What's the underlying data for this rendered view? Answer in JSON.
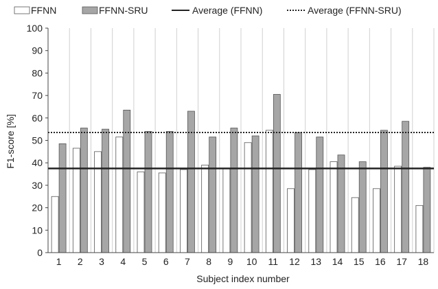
{
  "chart_data": {
    "type": "bar",
    "xlabel": "Subject index number",
    "ylabel": "F1-score [%]",
    "ylim": [
      0,
      100
    ],
    "yticks": [
      0,
      10,
      20,
      30,
      40,
      50,
      60,
      70,
      80,
      90,
      100
    ],
    "grid": "vertical category separators",
    "legend_position": "top",
    "categories": [
      "1",
      "2",
      "3",
      "4",
      "5",
      "6",
      "7",
      "8",
      "9",
      "10",
      "11",
      "12",
      "13",
      "14",
      "15",
      "16",
      "17",
      "18"
    ],
    "series": [
      {
        "name": "FFNN",
        "color": "#ffffff",
        "values": [
          25,
          46.5,
          45,
          51.5,
          36,
          35.5,
          37,
          39,
          37.5,
          49,
          54.5,
          28.5,
          37,
          40.5,
          24.5,
          28.5,
          38.5,
          21
        ]
      },
      {
        "name": "FFNN-SRU",
        "color": "#a6a6a6",
        "values": [
          48.5,
          55.5,
          55,
          63.5,
          54,
          54,
          63,
          51.5,
          55.5,
          52,
          70.5,
          53.5,
          51.5,
          43.5,
          40.5,
          54.5,
          58.5,
          38
        ]
      }
    ],
    "averages": [
      {
        "name": "Average (FFNN)",
        "value": 37.5,
        "style": "solid"
      },
      {
        "name": "Average (FFNN-SRU)",
        "value": 53.5,
        "style": "dotted"
      }
    ]
  }
}
